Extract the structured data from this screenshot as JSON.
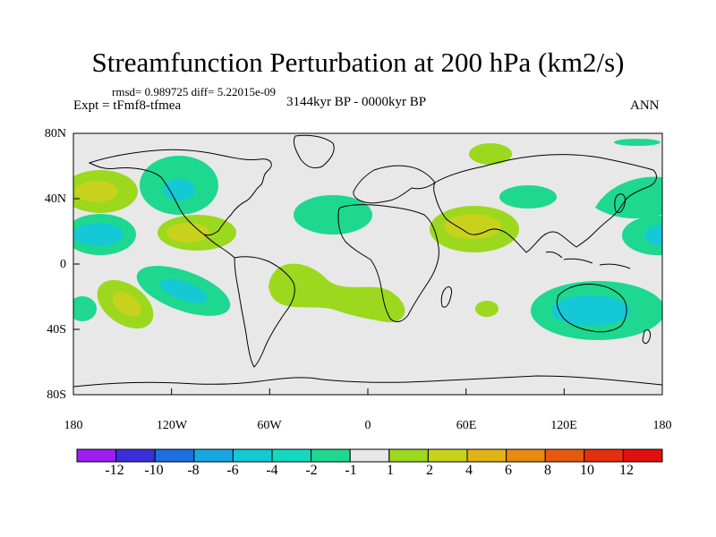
{
  "title": "Streamfunction Perturbation at 200 hPa (km2/s)",
  "stats": "rmsd= 0.989725 diff= 5.22015e-09",
  "experiment": "Expt = tFmf8-tfmea",
  "period": "3144kyr BP - 0000kyr BP",
  "season": "ANN",
  "map": {
    "background_color": "#e8e8e8",
    "lat_labels": [
      "80N",
      "40N",
      "0",
      "40S",
      "80S"
    ],
    "lat_values": [
      80,
      40,
      0,
      -40,
      -80
    ],
    "lon_labels": [
      "180",
      "120W",
      "60W",
      "0",
      "60E",
      "120E",
      "180"
    ],
    "lon_values": [
      -180,
      -120,
      -60,
      0,
      60,
      120,
      180
    ]
  },
  "colorbar": {
    "labels": [
      "-12",
      "-10",
      "-8",
      "-6",
      "-4",
      "-2",
      "-1",
      "1",
      "2",
      "4",
      "6",
      "8",
      "10",
      "12"
    ],
    "colors": [
      "#9b1ff0",
      "#3a2fd8",
      "#1e6fe0",
      "#17a8e2",
      "#15c8d6",
      "#13d8c0",
      "#1ed890",
      "#e8e8e8",
      "#9cd81e",
      "#c8d21c",
      "#e0b414",
      "#e88a10",
      "#e65a10",
      "#e43010",
      "#e01010"
    ]
  }
}
